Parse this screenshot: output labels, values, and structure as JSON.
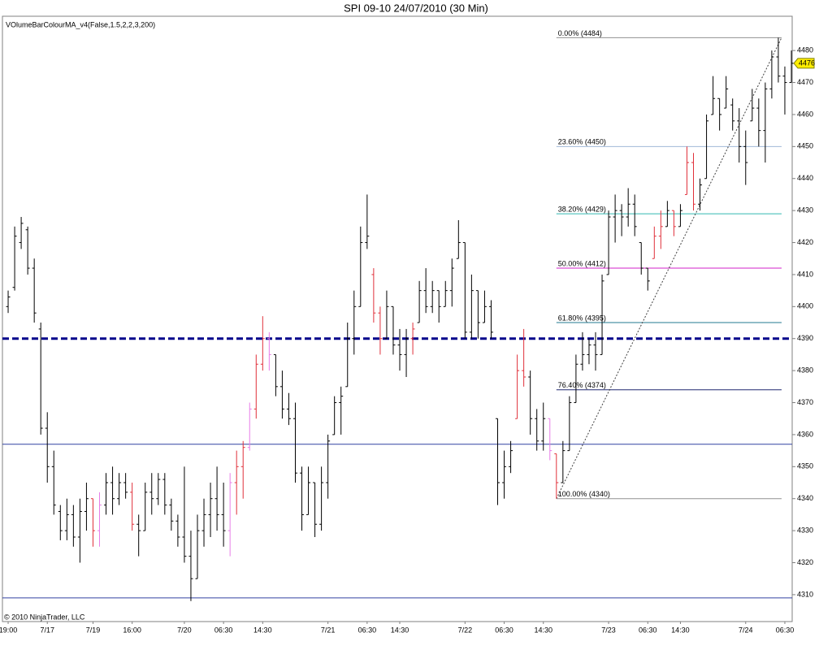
{
  "chart_data": {
    "type": "ohlc",
    "title": "SPI 09-10  24/07/2010 (30 Min)",
    "indicator_label": "VOlumeBarColourMA_v4(False,1.5,2,2,3,200)",
    "copyright": "© 2010 NinjaTrader, LLC",
    "categories": [
      "19:00",
      null,
      null,
      null,
      null,
      null,
      "7/17",
      null,
      null,
      null,
      null,
      null,
      null,
      "7/19",
      null,
      null,
      null,
      null,
      null,
      "16:00",
      null,
      null,
      null,
      null,
      null,
      null,
      null,
      "7/20",
      null,
      null,
      null,
      null,
      null,
      "06:30",
      null,
      null,
      null,
      null,
      null,
      "14:30",
      null,
      null,
      null,
      null,
      null,
      null,
      null,
      null,
      null,
      "7/21",
      null,
      null,
      null,
      null,
      null,
      "06:30",
      null,
      null,
      null,
      null,
      "14:30",
      null,
      null,
      null,
      null,
      null,
      null,
      null,
      null,
      null,
      "7/22",
      null,
      null,
      null,
      null,
      null,
      "06:30",
      null,
      null,
      null,
      null,
      null,
      "14:30",
      null,
      null,
      null,
      null,
      null,
      null,
      null,
      null,
      null,
      "7/23",
      null,
      null,
      null,
      null,
      null,
      "06:30",
      null,
      null,
      null,
      null,
      "14:30",
      null,
      null,
      null,
      null,
      null,
      null,
      null,
      null,
      null,
      "7/24",
      null,
      null,
      null,
      null,
      null,
      "06:30",
      null
    ],
    "open": [
      4400,
      4406,
      4420,
      4424,
      4412,
      4393,
      4362,
      4350,
      4336,
      4330,
      4335,
      4328,
      4336,
      4340,
      4330,
      4338,
      4345,
      4340,
      4345,
      4342,
      4332,
      4330,
      4342,
      4340,
      4346,
      4338,
      4333,
      4328,
      4322,
      4315,
      4330,
      4335,
      4340,
      4335,
      4330,
      4345,
      4350,
      4356,
      4368,
      4382,
      4390,
      4385,
      4375,
      4368,
      4365,
      4348,
      4335,
      4345,
      4332,
      4345,
      4360,
      4370,
      4375,
      4390,
      4400,
      4420,
      4410,
      4398,
      4390,
      4400,
      4388,
      4385,
      4390,
      4395,
      4405,
      4400,
      4405,
      4400,
      4405,
      4415,
      4420,
      4392,
      4405,
      4395,
      4400,
      4365,
      4345,
      4350,
      4365,
      4380,
      4378,
      4365,
      4358,
      4365,
      4354,
      4345,
      4355,
      4370,
      4382,
      4385,
      4388,
      4385,
      4410,
      4428,
      4430,
      4428,
      4432,
      4420,
      4412,
      4415,
      4422,
      4425,
      4430,
      4425,
      4435,
      4445,
      4432,
      4440,
      4460,
      4465,
      4462,
      4463,
      4458,
      4450,
      4458,
      4462,
      4455,
      4468,
      4478,
      4472,
      4470
    ],
    "high": [
      4405,
      4425,
      4428,
      4425,
      4415,
      4395,
      4367,
      4355,
      4338,
      4340,
      4338,
      4340,
      4345,
      4340,
      4342,
      4348,
      4350,
      4348,
      4348,
      4345,
      4335,
      4345,
      4348,
      4348,
      4348,
      4340,
      4335,
      4350,
      4330,
      4335,
      4340,
      4345,
      4350,
      4345,
      4348,
      4355,
      4358,
      4370,
      4385,
      4397,
      4392,
      4385,
      4380,
      4373,
      4370,
      4350,
      4350,
      4345,
      4350,
      4360,
      4372,
      4375,
      4395,
      4405,
      4425,
      4435,
      4412,
      4400,
      4405,
      4400,
      4393,
      4393,
      4395,
      4408,
      4412,
      4408,
      4405,
      4408,
      4415,
      4427,
      4420,
      4410,
      4405,
      4405,
      4402,
      4365,
      4355,
      4358,
      4385,
      4393,
      4380,
      4368,
      4370,
      4365,
      4354,
      4358,
      4372,
      4385,
      4392,
      4390,
      4392,
      4410,
      4430,
      4435,
      4432,
      4437,
      4435,
      4420,
      4412,
      4425,
      4430,
      4433,
      4430,
      4432,
      4450,
      4448,
      4440,
      4460,
      4472,
      4465,
      4472,
      4465,
      4462,
      4455,
      4468,
      4465,
      4470,
      4480,
      4484,
      4475,
      4480
    ],
    "low": [
      4398,
      4405,
      4418,
      4410,
      4395,
      4360,
      4345,
      4335,
      4327,
      4327,
      4325,
      4320,
      4330,
      4325,
      4325,
      4335,
      4335,
      4338,
      4340,
      4330,
      4322,
      4330,
      4335,
      4338,
      4335,
      4330,
      4325,
      4320,
      4308,
      4315,
      4325,
      4328,
      4330,
      4325,
      4322,
      4335,
      4340,
      4355,
      4365,
      4380,
      4380,
      4372,
      4365,
      4363,
      4345,
      4330,
      4335,
      4328,
      4330,
      4340,
      4360,
      4360,
      4375,
      4385,
      4400,
      4418,
      4395,
      4385,
      4390,
      4385,
      4380,
      4378,
      4385,
      4395,
      4398,
      4398,
      4395,
      4400,
      4400,
      4415,
      4390,
      4390,
      4390,
      4395,
      4390,
      4338,
      4340,
      4348,
      4365,
      4375,
      4360,
      4355,
      4355,
      4352,
      4340,
      4345,
      4355,
      4370,
      4380,
      4382,
      4380,
      4385,
      4410,
      4420,
      4422,
      4425,
      4422,
      4410,
      4405,
      4415,
      4418,
      4425,
      4422,
      4425,
      4435,
      4430,
      4430,
      4440,
      4460,
      4455,
      4462,
      4455,
      4445,
      4438,
      4458,
      4450,
      4445,
      4465,
      4470,
      4460,
      4470
    ],
    "close": [
      4403,
      4422,
      4426,
      4412,
      4398,
      4362,
      4350,
      4338,
      4330,
      4335,
      4328,
      4336,
      4340,
      4330,
      4338,
      4345,
      4340,
      4345,
      4342,
      4332,
      4330,
      4342,
      4340,
      4346,
      4338,
      4333,
      4328,
      4322,
      4315,
      4330,
      4335,
      4340,
      4335,
      4330,
      4345,
      4350,
      4356,
      4368,
      4382,
      4390,
      4385,
      4375,
      4368,
      4365,
      4348,
      4335,
      4345,
      4332,
      4345,
      4358,
      4370,
      4372,
      4390,
      4400,
      4420,
      4422,
      4398,
      4390,
      4400,
      4388,
      4385,
      4390,
      4393,
      4405,
      4400,
      4405,
      4400,
      4405,
      4412,
      4420,
      4392,
      4405,
      4395,
      4400,
      4392,
      4345,
      4350,
      4355,
      4380,
      4378,
      4365,
      4358,
      4365,
      4355,
      4345,
      4355,
      4370,
      4382,
      4385,
      4388,
      4385,
      4408,
      4428,
      4430,
      4428,
      4432,
      4425,
      4412,
      4408,
      4422,
      4425,
      4430,
      4425,
      4430,
      4445,
      4432,
      4438,
      4458,
      4465,
      4460,
      4468,
      4458,
      4450,
      4445,
      4462,
      4455,
      4468,
      4478,
      4472,
      4470,
      4476
    ],
    "bar_color": "#000000",
    "colored_bars": [
      {
        "color": "#e0303a",
        "indices": [
          13,
          19,
          35,
          36,
          38,
          39,
          56,
          57,
          62,
          78,
          79,
          84,
          99,
          100,
          102,
          104,
          105
        ]
      },
      {
        "color": "#e87de8",
        "indices": [
          14,
          34,
          37,
          40,
          83
        ]
      }
    ],
    "ylim": [
      4301.6,
      4490.7
    ],
    "yticks": [
      4310,
      4320,
      4330,
      4340,
      4350,
      4360,
      4370,
      4380,
      4390,
      4400,
      4410,
      4420,
      4430,
      4440,
      4450,
      4460,
      4470,
      4480
    ],
    "hlines": [
      {
        "value": 4390,
        "color": "#00008b",
        "style": "dashed"
      },
      {
        "value": 4357,
        "color": "#3040a0",
        "style": "solid"
      },
      {
        "value": 4309,
        "color": "#3040a0",
        "style": "solid"
      }
    ],
    "fib_levels": [
      {
        "value": 4484,
        "label": "0.00% (4484)",
        "color": "#909090"
      },
      {
        "value": 4450,
        "label": "23.60% (4450)",
        "color": "#a0b8d8"
      },
      {
        "value": 4429,
        "label": "38.20% (4429)",
        "color": "#30b8b0"
      },
      {
        "value": 4412,
        "label": "50.00% (4412)",
        "color": "#d020c8"
      },
      {
        "value": 4395,
        "label": "61.80% (4395)",
        "color": "#207890"
      },
      {
        "value": 4374,
        "label": "76.40% (4374)",
        "color": "#202870"
      },
      {
        "value": 4340,
        "label": "100.00% (4340)",
        "color": "#909090"
      }
    ],
    "last_price": 4476,
    "last_price_color": "#ffee00"
  }
}
